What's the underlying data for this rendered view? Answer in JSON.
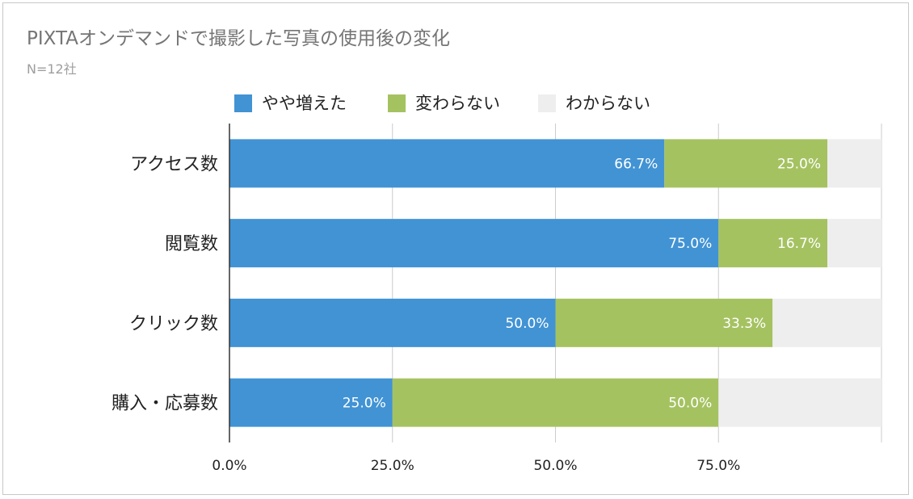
{
  "chart_data": {
    "type": "bar",
    "orientation": "horizontal",
    "stacked": true,
    "title": "PIXTAオンデマンドで撮影した写真の使用後の変化",
    "subtitle": "N=12社",
    "categories": [
      "アクセス数",
      "閲覧数",
      "クリック数",
      "購入・応募数"
    ],
    "series": [
      {
        "name": "やや増えた",
        "color": "#4193d4",
        "values": [
          66.7,
          75.0,
          50.0,
          25.0
        ],
        "labels": [
          "66.7%",
          "75.0%",
          "50.0%",
          "25.0%"
        ]
      },
      {
        "name": "変わらない",
        "color": "#a5c261",
        "values": [
          25.0,
          16.7,
          33.3,
          50.0
        ],
        "labels": [
          "25.0%",
          "16.7%",
          "33.3%",
          "50.0%"
        ]
      },
      {
        "name": "わからない",
        "color": "#eeeeee",
        "values": [
          8.3,
          8.3,
          16.7,
          25.0
        ],
        "labels": [
          "",
          "",
          "",
          ""
        ]
      }
    ],
    "xlim": [
      0,
      100
    ],
    "x_ticks": [
      0,
      25,
      50,
      75
    ],
    "x_tick_labels": [
      "0.0%",
      "25.0%",
      "50.0%",
      "75.0%"
    ],
    "grid": true,
    "legend_position": "top"
  }
}
